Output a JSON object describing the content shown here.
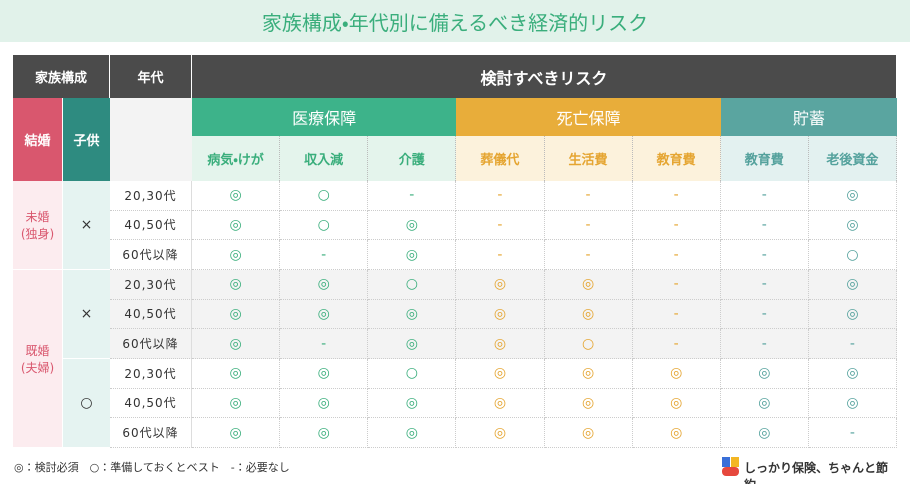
{
  "title": "家族構成・年代別に備えるべき経済的リスク",
  "table": {
    "header": {
      "family": "家族構成",
      "age": "年代",
      "risk": "検討すべきリスク",
      "marriage": "結婚",
      "children": "子供"
    },
    "groups": [
      {
        "name": "医療保障",
        "columns": [
          "病気・けが",
          "収入減",
          "介護"
        ]
      },
      {
        "name": "死亡保障",
        "columns": [
          "葬儀代",
          "生活費",
          "教育費"
        ]
      },
      {
        "name": "貯蓄",
        "columns": [
          "教育費",
          "老後資金"
        ]
      }
    ],
    "segments": [
      {
        "marriage": [
          "未婚",
          "(独身)"
        ],
        "children": [
          {
            "label": "×",
            "rows": [
              {
                "age": "20,30代",
                "cells": [
                  "◎",
                  "○",
                  "-",
                  "-",
                  "-",
                  "-",
                  "-",
                  "◎"
                ]
              },
              {
                "age": "40,50代",
                "cells": [
                  "◎",
                  "○",
                  "◎",
                  "-",
                  "-",
                  "-",
                  "-",
                  "◎"
                ]
              },
              {
                "age": "60代以降",
                "cells": [
                  "◎",
                  "-",
                  "◎",
                  "-",
                  "-",
                  "-",
                  "-",
                  "○"
                ]
              }
            ]
          }
        ]
      },
      {
        "marriage": [
          "既婚",
          "(夫婦)"
        ],
        "children": [
          {
            "label": "×",
            "rows": [
              {
                "age": "20,30代",
                "cells": [
                  "◎",
                  "◎",
                  "○",
                  "◎",
                  "◎",
                  "-",
                  "-",
                  "◎"
                ]
              },
              {
                "age": "40,50代",
                "cells": [
                  "◎",
                  "◎",
                  "◎",
                  "◎",
                  "◎",
                  "-",
                  "-",
                  "◎"
                ]
              },
              {
                "age": "60代以降",
                "cells": [
                  "◎",
                  "-",
                  "◎",
                  "◎",
                  "○",
                  "-",
                  "-",
                  "-"
                ]
              }
            ]
          },
          {
            "label": "○",
            "rows": [
              {
                "age": "20,30代",
                "cells": [
                  "◎",
                  "◎",
                  "○",
                  "◎",
                  "◎",
                  "◎",
                  "◎",
                  "◎"
                ]
              },
              {
                "age": "40,50代",
                "cells": [
                  "◎",
                  "◎",
                  "◎",
                  "◎",
                  "◎",
                  "◎",
                  "◎",
                  "◎"
                ]
              },
              {
                "age": "60代以降",
                "cells": [
                  "◎",
                  "◎",
                  "◎",
                  "◎",
                  "◎",
                  "◎",
                  "◎",
                  "-"
                ]
              }
            ]
          }
        ]
      }
    ]
  },
  "legend": "◎：検討必須　○：準備しておくとベスト　-：必要なし",
  "brand": "しっかり保険、ちゃんと節約。"
}
